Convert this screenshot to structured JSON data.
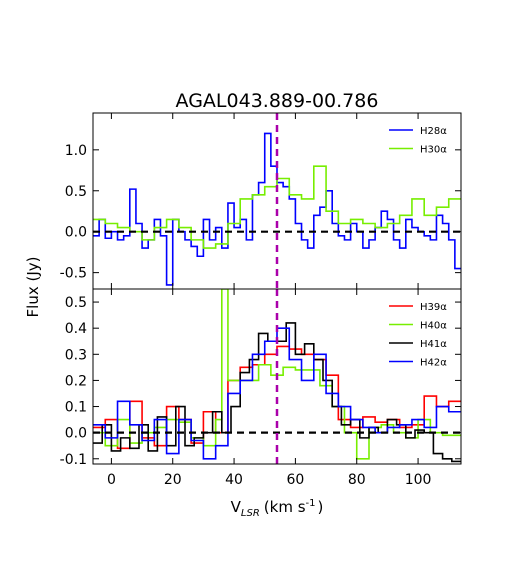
{
  "chart_data": {
    "type": "line",
    "title": "AGAL043.889-00.786",
    "xlabel": "V",
    "xlabel_sub": "LSR",
    "xlabel_unit": "(km s",
    "xlabel_sup": "-1",
    "xlabel_close": ")",
    "ylabel": "Flux (Jy)",
    "xlim": [
      -6,
      114
    ],
    "xticks": [
      0,
      20,
      40,
      60,
      80,
      100
    ],
    "xtick_labels": [
      "0",
      "20",
      "40",
      "60",
      "80",
      "100"
    ],
    "reference_velocity": 54,
    "panels": [
      {
        "name": "top",
        "ylim": [
          -0.7,
          1.45
        ],
        "yticks": [
          -0.5,
          0.0,
          0.5,
          1.0
        ],
        "ytick_labels": [
          "-0.5",
          "0.0",
          "0.5",
          "1.0"
        ],
        "legend_position": "top-right",
        "series": [
          {
            "name": "H28α",
            "color": "#0000ff",
            "x": [
              -6,
              -4,
              -2,
              0,
              2,
              4,
              6,
              8,
              10,
              12,
              14,
              16,
              18,
              20,
              22,
              24,
              26,
              28,
              30,
              32,
              34,
              36,
              38,
              40,
              42,
              44,
              46,
              48,
              50,
              52,
              54,
              56,
              58,
              60,
              62,
              64,
              66,
              68,
              70,
              72,
              74,
              76,
              78,
              80,
              82,
              84,
              86,
              88,
              90,
              92,
              94,
              96,
              98,
              100,
              102,
              104,
              106,
              108,
              110,
              112
            ],
            "y": [
              -0.05,
              0.15,
              -0.08,
              0.0,
              -0.1,
              -0.05,
              0.52,
              0.1,
              -0.2,
              -0.1,
              0.15,
              -0.05,
              -0.65,
              0.15,
              0.0,
              -0.1,
              -0.18,
              -0.3,
              0.15,
              -0.1,
              0.05,
              -0.2,
              0.35,
              0.05,
              0.15,
              -0.1,
              0.45,
              0.6,
              1.2,
              0.8,
              0.6,
              0.55,
              0.4,
              0.1,
              -0.1,
              -0.2,
              0.2,
              0.3,
              0.5,
              0.1,
              -0.05,
              -0.1,
              0.1,
              0.0,
              -0.2,
              -0.1,
              0.05,
              0.25,
              0.15,
              -0.1,
              -0.2,
              0.15,
              0.05,
              0.0,
              -0.05,
              -0.1,
              0.2,
              0.1,
              -0.1,
              -0.45
            ]
          },
          {
            "name": "H30α",
            "color": "#77ee00",
            "x": [
              -6,
              -2,
              2,
              6,
              10,
              14,
              18,
              22,
              26,
              30,
              34,
              38,
              42,
              46,
              50,
              54,
              58,
              62,
              66,
              70,
              74,
              78,
              82,
              86,
              90,
              94,
              98,
              102,
              106,
              110
            ],
            "y": [
              0.15,
              0.1,
              0.05,
              0.0,
              -0.1,
              0.05,
              0.15,
              0.05,
              -0.1,
              -0.2,
              -0.15,
              0.1,
              0.4,
              0.45,
              0.55,
              0.65,
              0.45,
              0.4,
              0.8,
              0.25,
              0.1,
              0.15,
              0.1,
              0.05,
              0.1,
              0.2,
              0.4,
              0.2,
              0.3,
              0.4
            ]
          }
        ],
        "legend": [
          "H28α",
          "H30α"
        ]
      },
      {
        "name": "bottom",
        "ylim": [
          -0.12,
          0.55
        ],
        "yticks": [
          -0.1,
          0.0,
          0.1,
          0.2,
          0.3,
          0.4,
          0.5
        ],
        "ytick_labels": [
          "-0.1",
          "0.0",
          "0.1",
          "0.2",
          "0.3",
          "0.4",
          "0.5"
        ],
        "legend_position": "top-right",
        "series": [
          {
            "name": "H39α",
            "color": "#ff0000",
            "x": [
              -6,
              -2,
              2,
              6,
              10,
              14,
              18,
              22,
              26,
              30,
              34,
              38,
              42,
              46,
              50,
              54,
              58,
              62,
              66,
              70,
              74,
              78,
              82,
              86,
              90,
              94,
              98,
              102,
              106,
              110
            ],
            "y": [
              0.02,
              0.05,
              -0.06,
              0.12,
              -0.02,
              -0.05,
              0.1,
              0.05,
              -0.04,
              0.08,
              0.0,
              0.2,
              0.25,
              0.26,
              0.3,
              0.33,
              0.32,
              0.3,
              0.28,
              0.22,
              0.05,
              0.02,
              0.06,
              0.04,
              0.05,
              0.02,
              0.03,
              0.14,
              0.1,
              0.12
            ]
          },
          {
            "name": "H40α",
            "color": "#77ee00",
            "x": [
              -6,
              -2,
              2,
              6,
              10,
              14,
              18,
              22,
              26,
              30,
              34,
              36,
              38,
              40,
              44,
              48,
              52,
              56,
              60,
              64,
              68,
              72,
              76,
              80,
              84,
              88,
              92,
              96,
              100,
              104,
              108,
              112
            ],
            "y": [
              0.0,
              -0.05,
              0.05,
              -0.04,
              0.0,
              0.02,
              0.05,
              0.04,
              -0.02,
              -0.05,
              0.05,
              0.55,
              0.2,
              0.2,
              0.2,
              0.26,
              0.22,
              0.25,
              0.24,
              0.24,
              0.18,
              0.1,
              0.0,
              -0.1,
              0.02,
              0.03,
              0.0,
              -0.02,
              0.05,
              0.0,
              -0.01,
              -0.01
            ]
          },
          {
            "name": "H41α",
            "color": "#000000",
            "x": [
              -6,
              -3,
              0,
              3,
              6,
              9,
              12,
              15,
              18,
              21,
              24,
              27,
              30,
              33,
              36,
              39,
              42,
              45,
              48,
              51,
              54,
              57,
              60,
              63,
              66,
              69,
              72,
              75,
              78,
              81,
              84,
              87,
              90,
              93,
              96,
              99,
              102,
              105,
              108,
              111
            ],
            "y": [
              -0.04,
              0.03,
              -0.07,
              -0.02,
              -0.06,
              0.03,
              -0.07,
              0.06,
              -0.05,
              0.1,
              -0.05,
              -0.02,
              0.0,
              0.08,
              0.0,
              0.1,
              0.23,
              0.28,
              0.38,
              0.35,
              0.35,
              0.42,
              0.3,
              0.34,
              0.28,
              0.2,
              0.1,
              0.03,
              0.05,
              -0.02,
              0.02,
              0.0,
              0.05,
              0.03,
              -0.02,
              0.01,
              0.0,
              -0.08,
              -0.1,
              -0.11
            ]
          },
          {
            "name": "H42α",
            "color": "#0000ff",
            "x": [
              -6,
              -2,
              2,
              6,
              10,
              14,
              18,
              22,
              26,
              30,
              34,
              38,
              42,
              46,
              50,
              54,
              58,
              62,
              66,
              70,
              74,
              78,
              82,
              86,
              90,
              94,
              98,
              102,
              106,
              110
            ],
            "y": [
              0.03,
              -0.02,
              0.12,
              0.03,
              -0.03,
              0.05,
              -0.08,
              0.05,
              -0.03,
              -0.1,
              -0.05,
              0.15,
              0.2,
              0.3,
              0.35,
              0.4,
              0.28,
              0.2,
              0.3,
              0.15,
              0.1,
              0.05,
              0.02,
              0.0,
              0.02,
              0.03,
              0.05,
              0.02,
              0.1,
              0.08
            ]
          }
        ],
        "legend": [
          "H39α",
          "H40α",
          "H41α",
          "H42α"
        ]
      }
    ]
  }
}
